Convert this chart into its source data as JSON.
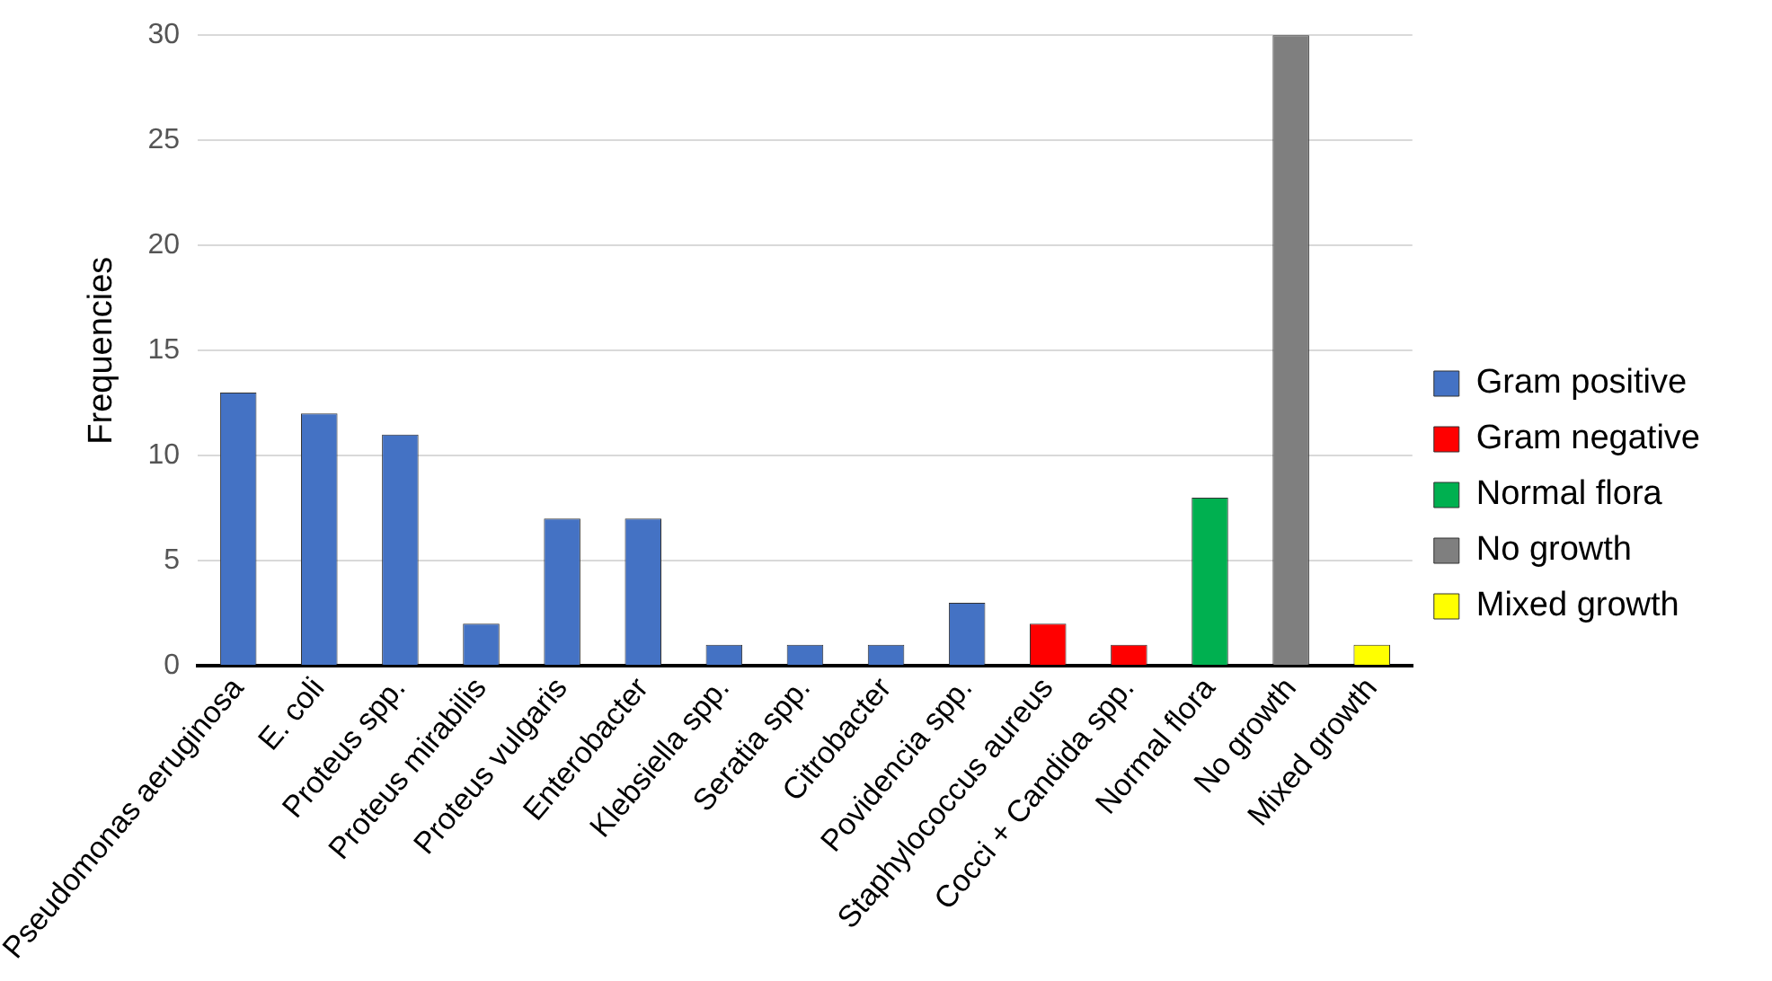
{
  "chart_data": {
    "type": "bar",
    "ylabel": "Frequencies",
    "categories": [
      "Pseudomonas aeruginosa",
      "E. coli",
      "Proteus spp.",
      "Proteus mirabilis",
      "Proteus vulgaris",
      "Enterobacter",
      "Klebsiella spp.",
      "Seratia spp.",
      "Citrobacter",
      "Povidencia spp.",
      "Staphylococcus aureus",
      "Cocci + Candida spp.",
      "Normal flora",
      "No growth",
      "Mixed growth"
    ],
    "series": [
      {
        "name": "Gram positive",
        "color": "#4472c4",
        "values": [
          13,
          12,
          11,
          2,
          7,
          7,
          1,
          1,
          1,
          3,
          null,
          null,
          null,
          null,
          null
        ]
      },
      {
        "name": "Gram negative",
        "color": "#ff0000",
        "values": [
          null,
          null,
          null,
          null,
          null,
          null,
          null,
          null,
          null,
          null,
          2,
          1,
          null,
          null,
          null
        ]
      },
      {
        "name": "Normal flora",
        "color": "#00b050",
        "values": [
          null,
          null,
          null,
          null,
          null,
          null,
          null,
          null,
          null,
          null,
          null,
          null,
          8,
          null,
          null
        ]
      },
      {
        "name": "No growth",
        "color": "#7f7f7f",
        "values": [
          null,
          null,
          null,
          null,
          null,
          null,
          null,
          null,
          null,
          null,
          null,
          null,
          null,
          30,
          null
        ]
      },
      {
        "name": "Mixed growth",
        "color": "#ffff00",
        "values": [
          null,
          null,
          null,
          null,
          null,
          null,
          null,
          null,
          null,
          null,
          null,
          null,
          null,
          null,
          1
        ]
      }
    ],
    "ylim": [
      0,
      30
    ],
    "yticks": [
      0,
      5,
      10,
      15,
      20,
      25,
      30
    ],
    "grid": "y",
    "legend": "right"
  }
}
